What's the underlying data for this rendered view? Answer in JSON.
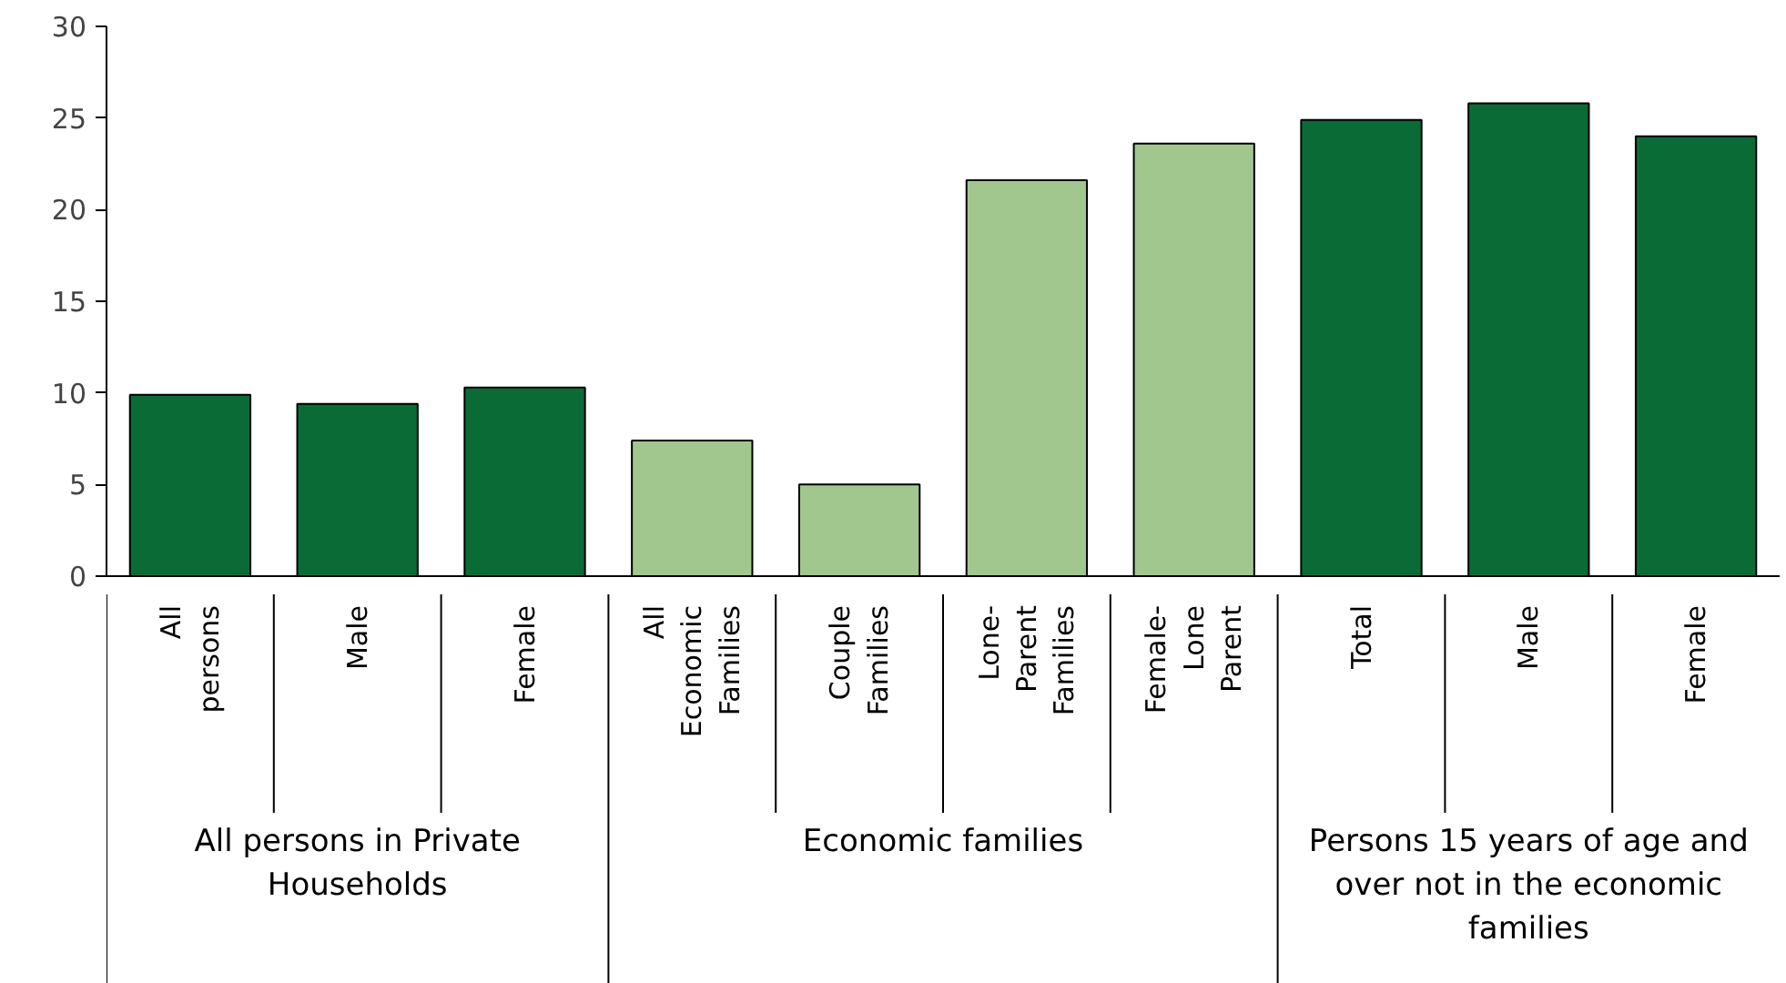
{
  "chart_data": {
    "type": "bar",
    "categories": [
      "All\npersons",
      "Male",
      "Female",
      "All\nEconomic\nFamilies",
      "Couple\nFamilies",
      "Lone-\nParent\nFamilies",
      "Female-\nLone\nParent",
      "Total",
      "Male",
      "Female"
    ],
    "values": [
      9.9,
      9.4,
      10.3,
      7.4,
      5.0,
      21.6,
      23.6,
      24.9,
      25.8,
      24.0
    ],
    "colors": [
      "#0a6b37",
      "#0a6b37",
      "#0a6b37",
      "#a2c78e",
      "#a2c78e",
      "#a2c78e",
      "#a2c78e",
      "#0a6b37",
      "#0a6b37",
      "#0a6b37"
    ],
    "annotations": [
      "All persons in Private Households",
      "Economic families",
      "Persons 15 years of age and over not in the economic families"
    ],
    "ylim": [
      0,
      30
    ],
    "yticks": [
      0,
      5,
      10,
      15,
      20,
      25,
      30
    ],
    "grid": false
  }
}
